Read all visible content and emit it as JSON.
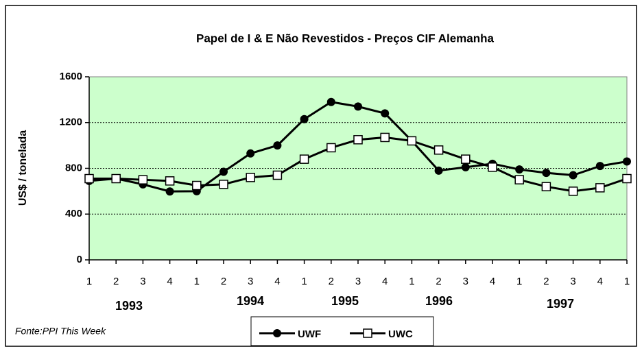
{
  "chart_data": {
    "type": "line",
    "title": "Papel de I & E Não Revestidos - Preços CIF Alemanha",
    "y_label": "US$ / tonelada",
    "categories": [
      "1",
      "2",
      "3",
      "4",
      "1",
      "2",
      "3",
      "4",
      "1",
      "2",
      "3",
      "4",
      "1",
      "2",
      "3",
      "4",
      "1",
      "2",
      "3",
      "4",
      "1"
    ],
    "year_labels": [
      "1993",
      "1994",
      "1995",
      "1996",
      "1997"
    ],
    "source": "Fonte:PPI This Week",
    "ylim": [
      0,
      1600
    ],
    "yticks": [
      0,
      400,
      800,
      1200,
      1600
    ],
    "grid": true,
    "background": "#ccffcc",
    "series": [
      {
        "name": "UWF",
        "color": "#000000",
        "marker": "circle",
        "values": [
          690,
          710,
          660,
          598,
          600,
          770,
          930,
          1000,
          1230,
          1380,
          1340,
          1280,
          1040,
          780,
          810,
          840,
          790,
          760,
          740,
          820,
          860
        ]
      },
      {
        "name": "UWC",
        "color": "#000000",
        "marker": "square",
        "values": [
          710,
          710,
          700,
          690,
          650,
          660,
          720,
          740,
          880,
          980,
          1050,
          1070,
          1040,
          960,
          880,
          810,
          700,
          640,
          600,
          630,
          710
        ]
      }
    ]
  }
}
